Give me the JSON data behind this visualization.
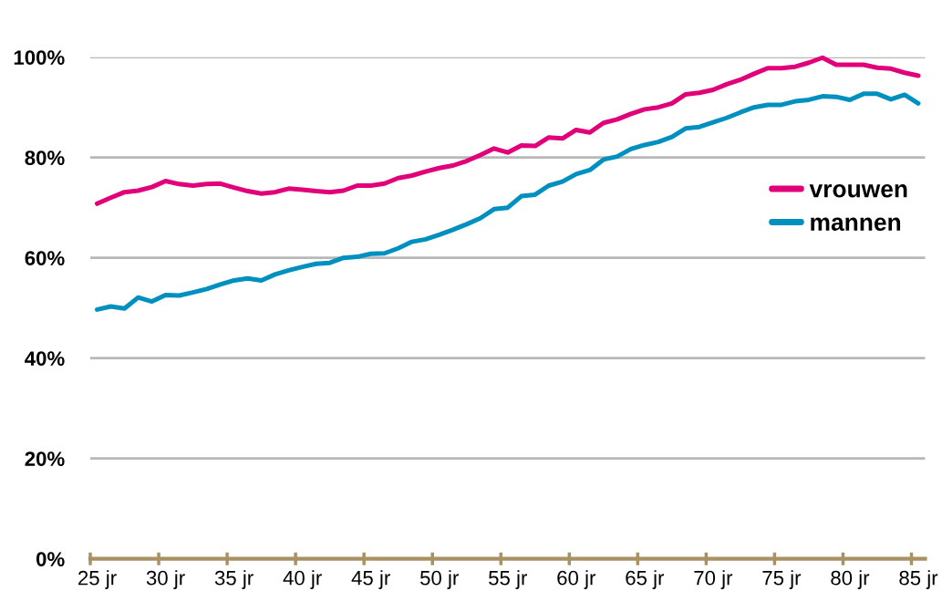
{
  "chart_data": {
    "type": "line",
    "categories": [
      "25 jr",
      null,
      null,
      null,
      null,
      "30 jr",
      null,
      null,
      null,
      null,
      "35 jr",
      null,
      null,
      null,
      null,
      "40 jr",
      null,
      null,
      null,
      null,
      "45 jr",
      null,
      null,
      null,
      null,
      "50 jr",
      null,
      null,
      null,
      null,
      "55 jr",
      null,
      null,
      null,
      null,
      "60 jr",
      null,
      null,
      null,
      null,
      "65 jr",
      null,
      null,
      null,
      null,
      "70 jr",
      null,
      null,
      null,
      null,
      "75 jr",
      null,
      null,
      null,
      null,
      "80 jr",
      null,
      null,
      null,
      null,
      "85 jr"
    ],
    "series": [
      {
        "name": "vrouwen",
        "color": "#e2007a",
        "values": [
          70.8,
          72.0,
          73.1,
          73.4,
          74.1,
          75.3,
          74.7,
          74.4,
          74.7,
          74.8,
          74.0,
          73.3,
          72.8,
          73.1,
          73.8,
          73.6,
          73.3,
          73.1,
          73.4,
          74.4,
          74.4,
          74.8,
          75.9,
          76.4,
          77.2,
          77.9,
          78.4,
          79.3,
          80.5,
          81.8,
          81.0,
          82.4,
          82.3,
          84.0,
          83.8,
          85.5,
          85.0,
          86.9,
          87.6,
          88.7,
          89.6,
          90.0,
          90.8,
          92.6,
          92.9,
          93.5,
          94.6,
          95.5,
          96.7,
          97.8,
          97.8,
          98.1,
          98.9,
          99.9,
          98.5,
          98.5,
          98.5,
          97.9,
          97.7,
          96.9,
          96.3
        ]
      },
      {
        "name": "mannen",
        "color": "#0090c0",
        "values": [
          49.7,
          50.3,
          49.9,
          52.1,
          51.3,
          52.6,
          52.5,
          53.1,
          53.8,
          54.7,
          55.5,
          55.9,
          55.5,
          56.7,
          57.5,
          58.2,
          58.8,
          59.0,
          60.0,
          60.2,
          60.8,
          60.9,
          61.9,
          63.2,
          63.7,
          64.6,
          65.6,
          66.7,
          67.9,
          69.7,
          70.0,
          72.3,
          72.6,
          74.4,
          75.2,
          76.7,
          77.5,
          79.6,
          80.2,
          81.7,
          82.5,
          83.1,
          84.1,
          85.8,
          86.1,
          87.0,
          87.9,
          89.0,
          90.0,
          90.5,
          90.5,
          91.2,
          91.5,
          92.2,
          92.1,
          91.5,
          92.7,
          92.7,
          91.6,
          92.5,
          90.8
        ]
      }
    ],
    "ylim": [
      0,
      100
    ],
    "yticks": [
      {
        "value": 0,
        "label": "0%"
      },
      {
        "value": 20,
        "label": "20%"
      },
      {
        "value": 40,
        "label": "40%"
      },
      {
        "value": 60,
        "label": "60%"
      },
      {
        "value": 80,
        "label": "80%"
      },
      {
        "value": 100,
        "label": "100%"
      }
    ],
    "grid": "y",
    "legend": "right",
    "line_style": "solid"
  }
}
